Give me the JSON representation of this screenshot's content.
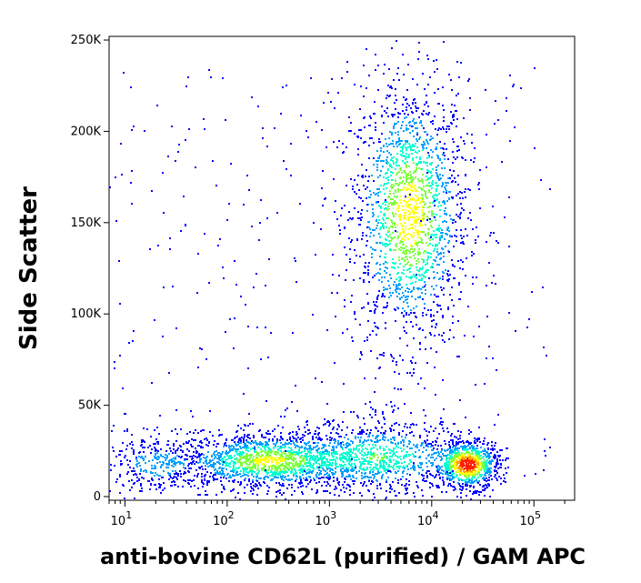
{
  "chart_data": {
    "type": "scatter",
    "subtype": "flow-cytometry-density-dotplot",
    "xlabel": "anti-bovine CD62L (purified) / GAM APC",
    "ylabel": "Side Scatter",
    "x_scale": "log",
    "y_scale": "linear",
    "xlim": [
      7,
      250000
    ],
    "ylim": [
      -2000,
      252000
    ],
    "x_ticks": [
      {
        "value": 10,
        "base": "10",
        "exp": "1"
      },
      {
        "value": 100,
        "base": "10",
        "exp": "2"
      },
      {
        "value": 1000,
        "base": "10",
        "exp": "3"
      },
      {
        "value": 10000,
        "base": "10",
        "exp": "4"
      },
      {
        "value": 100000,
        "base": "10",
        "exp": "5"
      }
    ],
    "y_ticks": [
      {
        "value": 0,
        "label": "0"
      },
      {
        "value": 50000,
        "label": "50K"
      },
      {
        "value": 100000,
        "label": "100K"
      },
      {
        "value": 150000,
        "label": "150K"
      },
      {
        "value": 200000,
        "label": "200K"
      },
      {
        "value": 250000,
        "label": "250K"
      }
    ],
    "grid": false,
    "legend": "none",
    "colormap": [
      "#0000ff",
      "#00a0ff",
      "#00ffd0",
      "#80ff40",
      "#ffff00",
      "#ffa000",
      "#ff2000"
    ],
    "populations": [
      {
        "x_center": 6000,
        "x_log_sd": 0.22,
        "y_center": 155000,
        "y_sd": 28000,
        "relative_density": 1.0
      },
      {
        "x_center": 250,
        "x_log_sd": 0.35,
        "y_center": 20000,
        "y_sd": 6000,
        "relative_density": 0.9
      },
      {
        "x_center": 22000,
        "x_log_sd": 0.12,
        "y_center": 18000,
        "y_sd": 5000,
        "relative_density": 1.6
      },
      {
        "x_center": 3000,
        "x_log_sd": 0.35,
        "y_center": 22000,
        "y_sd": 8000,
        "relative_density": 0.6
      },
      {
        "x_center": 20,
        "x_log_sd": 0.2,
        "y_center": 18000,
        "y_sd": 6000,
        "relative_density": 0.3
      }
    ]
  }
}
